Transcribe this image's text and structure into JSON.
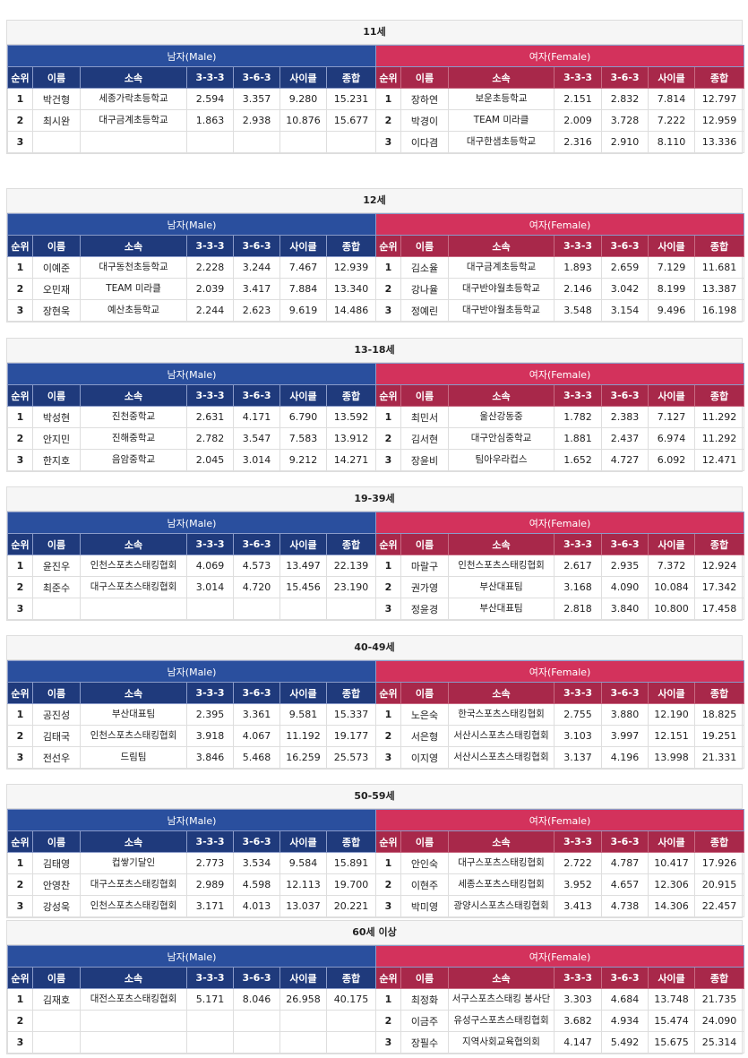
{
  "labels": {
    "male": "남자(Male)",
    "female": "여자(Female)",
    "columns": [
      "순위",
      "이름",
      "소속",
      "3-3-3",
      "3-6-3",
      "사이클",
      "종합"
    ]
  },
  "colors": {
    "male_group": "#2a4f9e",
    "male_header": "#1f3a7c",
    "female_group": "#d3325c",
    "female_header": "#a8284a"
  },
  "sections": [
    {
      "title": "11세",
      "male": [
        [
          "1",
          "박건형",
          "세종가락초등학교",
          "2.594",
          "3.357",
          "9.280",
          "15.231"
        ],
        [
          "2",
          "최시완",
          "대구금계초등학교",
          "1.863",
          "2.938",
          "10.876",
          "15.677"
        ],
        [
          "3",
          "",
          "",
          "",
          "",
          "",
          ""
        ]
      ],
      "female": [
        [
          "1",
          "장하연",
          "보운초등학교",
          "2.151",
          "2.832",
          "7.814",
          "12.797"
        ],
        [
          "2",
          "박경이",
          "TEAM 미라클",
          "2.009",
          "3.728",
          "7.222",
          "12.959"
        ],
        [
          "3",
          "이다겸",
          "대구한샘초등학교",
          "2.316",
          "2.910",
          "8.110",
          "13.336"
        ]
      ]
    },
    {
      "title": "12세",
      "male": [
        [
          "1",
          "이예준",
          "대구동천초등학교",
          "2.228",
          "3.244",
          "7.467",
          "12.939"
        ],
        [
          "2",
          "오민재",
          "TEAM 미라클",
          "2.039",
          "3.417",
          "7.884",
          "13.340"
        ],
        [
          "3",
          "장현욱",
          "예산초등학교",
          "2.244",
          "2.623",
          "9.619",
          "14.486"
        ]
      ],
      "female": [
        [
          "1",
          "김소율",
          "대구금계초등학교",
          "1.893",
          "2.659",
          "7.129",
          "11.681"
        ],
        [
          "2",
          "강나율",
          "대구반야월초등학교",
          "2.146",
          "3.042",
          "8.199",
          "13.387"
        ],
        [
          "3",
          "정예린",
          "대구반야월초등학교",
          "3.548",
          "3.154",
          "9.496",
          "16.198"
        ]
      ]
    },
    {
      "title": "13-18세",
      "male": [
        [
          "1",
          "박성현",
          "진천중학교",
          "2.631",
          "4.171",
          "6.790",
          "13.592"
        ],
        [
          "2",
          "안지민",
          "진해중학교",
          "2.782",
          "3.547",
          "7.583",
          "13.912"
        ],
        [
          "3",
          "한지호",
          "음암중학교",
          "2.045",
          "3.014",
          "9.212",
          "14.271"
        ]
      ],
      "female": [
        [
          "1",
          "최민서",
          "울산강동중",
          "1.782",
          "2.383",
          "7.127",
          "11.292"
        ],
        [
          "2",
          "김서현",
          "대구안심중학교",
          "1.881",
          "2.437",
          "6.974",
          "11.292"
        ],
        [
          "3",
          "장윤비",
          "팀아우라컵스",
          "1.652",
          "4.727",
          "6.092",
          "12.471"
        ]
      ]
    },
    {
      "title": "19-39세",
      "male": [
        [
          "1",
          "윤진우",
          "인천스포츠스태킹협회",
          "4.069",
          "4.573",
          "13.497",
          "22.139"
        ],
        [
          "2",
          "최준수",
          "대구스포츠스태킹협회",
          "3.014",
          "4.720",
          "15.456",
          "23.190"
        ],
        [
          "3",
          "",
          "",
          "",
          "",
          "",
          ""
        ]
      ],
      "female": [
        [
          "1",
          "마랄구",
          "인천스포츠스태킹협회",
          "2.617",
          "2.935",
          "7.372",
          "12.924"
        ],
        [
          "2",
          "권가영",
          "부산대표팀",
          "3.168",
          "4.090",
          "10.084",
          "17.342"
        ],
        [
          "3",
          "정윤경",
          "부산대표팀",
          "2.818",
          "3.840",
          "10.800",
          "17.458"
        ]
      ]
    },
    {
      "title": "40-49세",
      "male": [
        [
          "1",
          "공진성",
          "부산대표팀",
          "2.395",
          "3.361",
          "9.581",
          "15.337"
        ],
        [
          "2",
          "김태국",
          "인천스포츠스태킹협회",
          "3.918",
          "4.067",
          "11.192",
          "19.177"
        ],
        [
          "3",
          "전선우",
          "드림팀",
          "3.846",
          "5.468",
          "16.259",
          "25.573"
        ]
      ],
      "female": [
        [
          "1",
          "노은숙",
          "한국스포츠스태킹협회",
          "2.755",
          "3.880",
          "12.190",
          "18.825"
        ],
        [
          "2",
          "서은형",
          "서산시스포츠스태킹협회",
          "3.103",
          "3.997",
          "12.151",
          "19.251"
        ],
        [
          "3",
          "이지영",
          "서산시스포츠스태킹협회",
          "3.137",
          "4.196",
          "13.998",
          "21.331"
        ]
      ]
    },
    {
      "title": "50-59세",
      "male": [
        [
          "1",
          "김태영",
          "컵쌓기달인",
          "2.773",
          "3.534",
          "9.584",
          "15.891"
        ],
        [
          "2",
          "안영찬",
          "대구스포츠스태킹협회",
          "2.989",
          "4.598",
          "12.113",
          "19.700"
        ],
        [
          "3",
          "강성욱",
          "인천스포츠스태킹협회",
          "3.171",
          "4.013",
          "13.037",
          "20.221"
        ]
      ],
      "female": [
        [
          "1",
          "안인숙",
          "대구스포츠스태킹협회",
          "2.722",
          "4.787",
          "10.417",
          "17.926"
        ],
        [
          "2",
          "이현주",
          "세종스포츠스태킹협회",
          "3.952",
          "4.657",
          "12.306",
          "20.915"
        ],
        [
          "3",
          "박미영",
          "광양시스포츠스태킹협회",
          "3.413",
          "4.738",
          "14.306",
          "22.457"
        ]
      ]
    },
    {
      "title": "60세 이상",
      "male": [
        [
          "1",
          "김재호",
          "대전스포츠스태킹협회",
          "5.171",
          "8.046",
          "26.958",
          "40.175"
        ],
        [
          "2",
          "",
          "",
          "",
          "",
          "",
          ""
        ],
        [
          "3",
          "",
          "",
          "",
          "",
          "",
          ""
        ]
      ],
      "female": [
        [
          "1",
          "최정화",
          "서구스포츠스태킹 봉사단",
          "3.303",
          "4.684",
          "13.748",
          "21.735"
        ],
        [
          "2",
          "이금주",
          "유성구스포츠스태킹협회",
          "3.682",
          "4.934",
          "15.474",
          "24.090"
        ],
        [
          "3",
          "장필수",
          "지역사회교육협의회",
          "4.147",
          "5.492",
          "15.675",
          "25.314"
        ]
      ]
    }
  ]
}
